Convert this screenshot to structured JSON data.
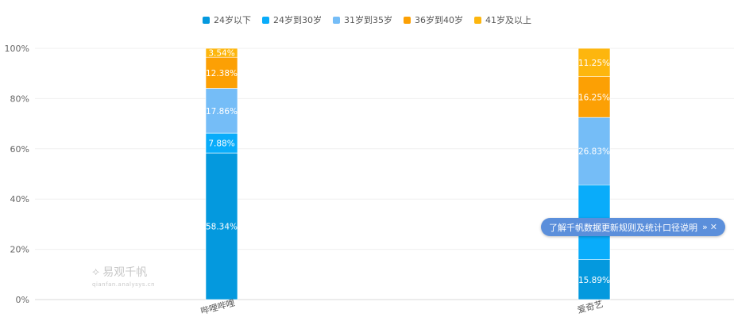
{
  "chart_data": {
    "type": "bar",
    "stacked": true,
    "normalized": true,
    "categories": [
      "哔哩哔哩",
      "爱奇艺"
    ],
    "series": [
      {
        "name": "24岁以下",
        "color": "#0499de",
        "values": [
          58.34,
          15.89
        ],
        "labels": [
          "58.34%",
          "15.89%"
        ]
      },
      {
        "name": "24岁到30岁",
        "color": "#09acfa",
        "values": [
          7.88,
          29.78
        ],
        "labels": [
          "7.88%",
          ""
        ]
      },
      {
        "name": "31岁到35岁",
        "color": "#75bdf7",
        "values": [
          17.86,
          26.83
        ],
        "labels": [
          "17.86%",
          "26.83%"
        ]
      },
      {
        "name": "36岁到40岁",
        "color": "#fca004",
        "values": [
          12.38,
          16.25
        ],
        "labels": [
          "12.38%",
          "16.25%"
        ]
      },
      {
        "name": "41岁及以上",
        "color": "#fdb60e",
        "values": [
          3.54,
          11.25
        ],
        "labels": [
          "3.54%",
          "11.25%"
        ]
      }
    ],
    "ylim": [
      0,
      100
    ],
    "yticks": [
      "0%",
      "20%",
      "40%",
      "60%",
      "80%",
      "100%"
    ],
    "grid": true,
    "legend_position": "top-center"
  },
  "notice": {
    "text": "了解千帆数据更新规则及统计口径说明",
    "chevron": "»",
    "close": "✕"
  },
  "watermark": {
    "brand": "易观千帆",
    "url": "qianfan.analysys.cn"
  }
}
